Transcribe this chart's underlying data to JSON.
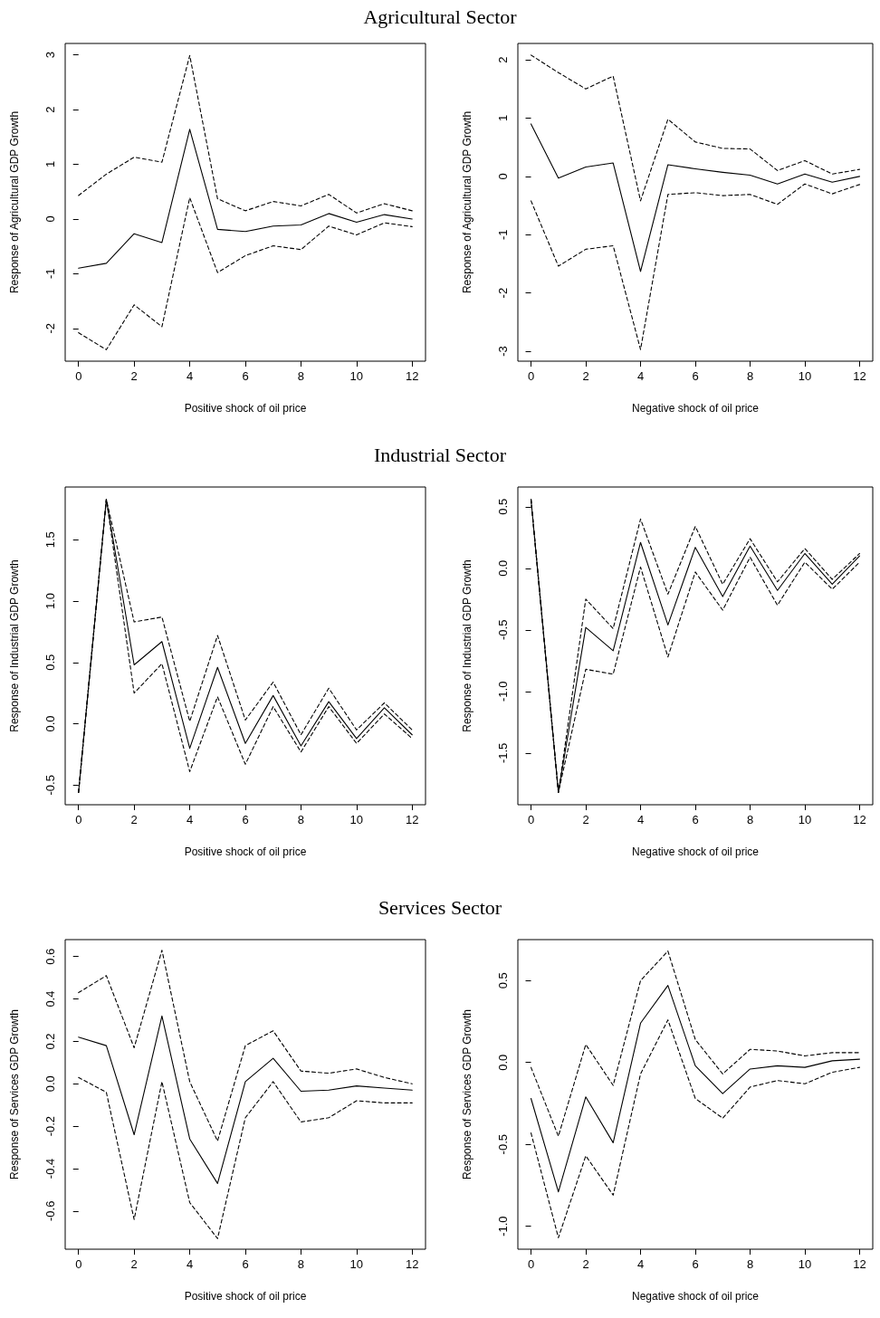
{
  "chart_data": [
    {
      "type": "line",
      "title": "Agricultural Sector",
      "xlabel": "Positive shock of oil price",
      "ylabel": "Response of Agricultural GDP Growth",
      "marker": "none",
      "x": [
        0,
        1,
        2,
        3,
        4,
        5,
        6,
        7,
        8,
        9,
        10,
        11,
        12
      ],
      "xlim": [
        -0.48,
        12.48
      ],
      "xticks": [
        0,
        2,
        4,
        6,
        8,
        10,
        12
      ],
      "ylim": [
        -2.6,
        3.21
      ],
      "yticks": [
        -2,
        -1,
        0,
        1,
        2,
        3
      ],
      "series": [
        {
          "color": "#000000",
          "line_style": "solid",
          "values": [
            -0.9,
            -0.81,
            -0.27,
            -0.43,
            1.64,
            -0.19,
            -0.23,
            -0.13,
            -0.11,
            0.1,
            -0.06,
            0.08,
            0
          ]
        },
        {
          "color": "#000000",
          "line_style": "dashed",
          "values": [
            0.43,
            0.82,
            1.13,
            1.04,
            2.99,
            0.37,
            0.15,
            0.32,
            0.24,
            0.45,
            0.11,
            0.28,
            0.15
          ]
        },
        {
          "color": "#000000",
          "line_style": "dashed",
          "values": [
            -2.08,
            -2.39,
            -1.57,
            -1.97,
            0.39,
            -0.98,
            -0.67,
            -0.49,
            -0.56,
            -0.13,
            -0.29,
            -0.07,
            -0.14
          ]
        }
      ]
    },
    {
      "type": "line",
      "xlabel": "Negative shock of oil price",
      "ylabel": "Response of Agricultural GDP Growth",
      "marker": "none",
      "x": [
        0,
        1,
        2,
        3,
        4,
        5,
        6,
        7,
        8,
        9,
        10,
        11,
        12
      ],
      "xlim": [
        -0.48,
        12.48
      ],
      "xticks": [
        0,
        2,
        4,
        6,
        8,
        10,
        12
      ],
      "ylim": [
        -3.17,
        2.28
      ],
      "yticks": [
        -3,
        -2,
        -1,
        0,
        1,
        2
      ],
      "series": [
        {
          "color": "#000000",
          "line_style": "solid",
          "values": [
            0.9,
            -0.03,
            0.16,
            0.23,
            -1.63,
            0.2,
            0.13,
            0.07,
            0.02,
            -0.13,
            0.04,
            -0.1,
            0
          ]
        },
        {
          "color": "#000000",
          "line_style": "dashed",
          "values": [
            2.08,
            1.78,
            1.5,
            1.72,
            -0.42,
            0.98,
            0.59,
            0.48,
            0.47,
            0.1,
            0.27,
            0.04,
            0.12
          ]
        },
        {
          "color": "#000000",
          "line_style": "dashed",
          "values": [
            -0.42,
            -1.54,
            -1.25,
            -1.19,
            -2.97,
            -0.31,
            -0.28,
            -0.33,
            -0.31,
            -0.48,
            -0.13,
            -0.3,
            -0.14
          ]
        }
      ]
    },
    {
      "type": "line",
      "title": "Industrial Sector",
      "xlabel": "Positive shock of oil price",
      "ylabel": "Response of Industrial GDP Growth",
      "marker": "none",
      "x": [
        0,
        1,
        2,
        3,
        4,
        5,
        6,
        7,
        8,
        9,
        10,
        11,
        12
      ],
      "xlim": [
        -0.48,
        12.48
      ],
      "xticks": [
        0,
        2,
        4,
        6,
        8,
        10,
        12
      ],
      "ylim": [
        -0.66,
        1.93
      ],
      "yticks": [
        {
          "value": -0.5,
          "label": "-0.5"
        },
        {
          "value": 0,
          "label": "0.0"
        },
        {
          "value": 0.5,
          "label": "0.5"
        },
        {
          "value": 1,
          "label": "1.0"
        },
        {
          "value": 1.5,
          "label": "1.5"
        }
      ],
      "series": [
        {
          "color": "#000000",
          "line_style": "solid",
          "values": [
            -0.56,
            1.83,
            0.48,
            0.67,
            -0.2,
            0.46,
            -0.16,
            0.23,
            -0.18,
            0.18,
            -0.12,
            0.13,
            -0.09
          ]
        },
        {
          "color": "#000000",
          "line_style": "dashed",
          "values": [
            -0.56,
            1.83,
            0.83,
            0.87,
            0.02,
            0.72,
            0.03,
            0.34,
            -0.09,
            0.29,
            -0.05,
            0.17,
            -0.05
          ]
        },
        {
          "color": "#000000",
          "line_style": "dashed",
          "values": [
            -0.56,
            1.83,
            0.25,
            0.49,
            -0.39,
            0.22,
            -0.33,
            0.14,
            -0.23,
            0.14,
            -0.16,
            0.08,
            -0.12
          ]
        }
      ]
    },
    {
      "type": "line",
      "xlabel": "Negative shock of oil price",
      "ylabel": "Response of Industrial GDP Growth",
      "marker": "none",
      "x": [
        0,
        1,
        2,
        3,
        4,
        5,
        6,
        7,
        8,
        9,
        10,
        11,
        12
      ],
      "xlim": [
        -0.48,
        12.48
      ],
      "xticks": [
        0,
        2,
        4,
        6,
        8,
        10,
        12
      ],
      "ylim": [
        -1.92,
        0.66
      ],
      "yticks": [
        {
          "value": -1.5,
          "label": "-1.5"
        },
        {
          "value": -1,
          "label": "-1.0"
        },
        {
          "value": -0.5,
          "label": "-0.5"
        },
        {
          "value": 0,
          "label": "0.0"
        },
        {
          "value": 0.5,
          "label": "0.5"
        }
      ],
      "series": [
        {
          "color": "#000000",
          "line_style": "solid",
          "values": [
            0.56,
            -1.82,
            -0.48,
            -0.67,
            0.21,
            -0.46,
            0.17,
            -0.23,
            0.18,
            -0.18,
            0.12,
            -0.13,
            0.1
          ]
        },
        {
          "color": "#000000",
          "line_style": "dashed",
          "values": [
            0.56,
            -1.82,
            -0.25,
            -0.49,
            0.4,
            -0.21,
            0.34,
            -0.13,
            0.24,
            -0.11,
            0.16,
            -0.09,
            0.12
          ]
        },
        {
          "color": "#000000",
          "line_style": "dashed",
          "values": [
            0.56,
            -1.82,
            -0.82,
            -0.86,
            0.01,
            -0.72,
            -0.03,
            -0.34,
            0.09,
            -0.3,
            0.05,
            -0.17,
            0.05
          ]
        }
      ]
    },
    {
      "type": "line",
      "title": "Services Sector",
      "xlabel": "Positive shock of oil price",
      "ylabel": "Response of Services GDP Growth",
      "marker": "none",
      "x": [
        0,
        1,
        2,
        3,
        4,
        5,
        6,
        7,
        8,
        9,
        10,
        11,
        12
      ],
      "xlim": [
        -0.48,
        12.48
      ],
      "xticks": [
        0,
        2,
        4,
        6,
        8,
        10,
        12
      ],
      "ylim": [
        -0.78,
        0.68
      ],
      "yticks": [
        {
          "value": -0.6,
          "label": "-0.6"
        },
        {
          "value": -0.4,
          "label": "-0.4"
        },
        {
          "value": -0.2,
          "label": "-0.2"
        },
        {
          "value": 0,
          "label": "0.0"
        },
        {
          "value": 0.2,
          "label": "0.2"
        },
        {
          "value": 0.4,
          "label": "0.4"
        },
        {
          "value": 0.6,
          "label": "0.6"
        }
      ],
      "series": [
        {
          "color": "#000000",
          "line_style": "solid",
          "values": [
            0.22,
            0.18,
            -0.24,
            0.32,
            -0.26,
            -0.47,
            0.01,
            0.12,
            -0.035,
            -0.03,
            -0.01,
            -0.02,
            -0.03
          ]
        },
        {
          "color": "#000000",
          "line_style": "dashed",
          "values": [
            0.43,
            0.51,
            0.17,
            0.63,
            0.01,
            -0.27,
            0.18,
            0.25,
            0.06,
            0.05,
            0.07,
            0.03,
            0
          ]
        },
        {
          "color": "#000000",
          "line_style": "dashed",
          "values": [
            0.03,
            -0.04,
            -0.64,
            0.01,
            -0.56,
            -0.73,
            -0.16,
            0.01,
            -0.18,
            -0.16,
            -0.08,
            -0.09,
            -0.09
          ]
        }
      ]
    },
    {
      "type": "line",
      "xlabel": "Negative shock of oil price",
      "ylabel": "Response of Services GDP Growth",
      "marker": "none",
      "x": [
        0,
        1,
        2,
        3,
        4,
        5,
        6,
        7,
        8,
        9,
        10,
        11,
        12
      ],
      "xlim": [
        -0.48,
        12.48
      ],
      "xticks": [
        0,
        2,
        4,
        6,
        8,
        10,
        12
      ],
      "ylim": [
        -1.14,
        0.75
      ],
      "yticks": [
        {
          "value": -1,
          "label": "-1.0"
        },
        {
          "value": -0.5,
          "label": "-0.5"
        },
        {
          "value": 0,
          "label": "0.0"
        },
        {
          "value": 0.5,
          "label": "0.5"
        }
      ],
      "series": [
        {
          "color": "#000000",
          "line_style": "solid",
          "values": [
            -0.22,
            -0.79,
            -0.21,
            -0.49,
            0.24,
            0.47,
            -0.02,
            -0.19,
            -0.04,
            -0.02,
            -0.03,
            0.01,
            0.02
          ]
        },
        {
          "color": "#000000",
          "line_style": "dashed",
          "values": [
            -0.03,
            -0.45,
            0.11,
            -0.14,
            0.5,
            0.68,
            0.14,
            -0.07,
            0.08,
            0.07,
            0.04,
            0.06,
            0.06
          ]
        },
        {
          "color": "#000000",
          "line_style": "dashed",
          "values": [
            -0.43,
            -1.07,
            -0.57,
            -0.81,
            -0.07,
            0.26,
            -0.22,
            -0.34,
            -0.15,
            -0.11,
            -0.13,
            -0.06,
            -0.03
          ]
        }
      ]
    }
  ]
}
